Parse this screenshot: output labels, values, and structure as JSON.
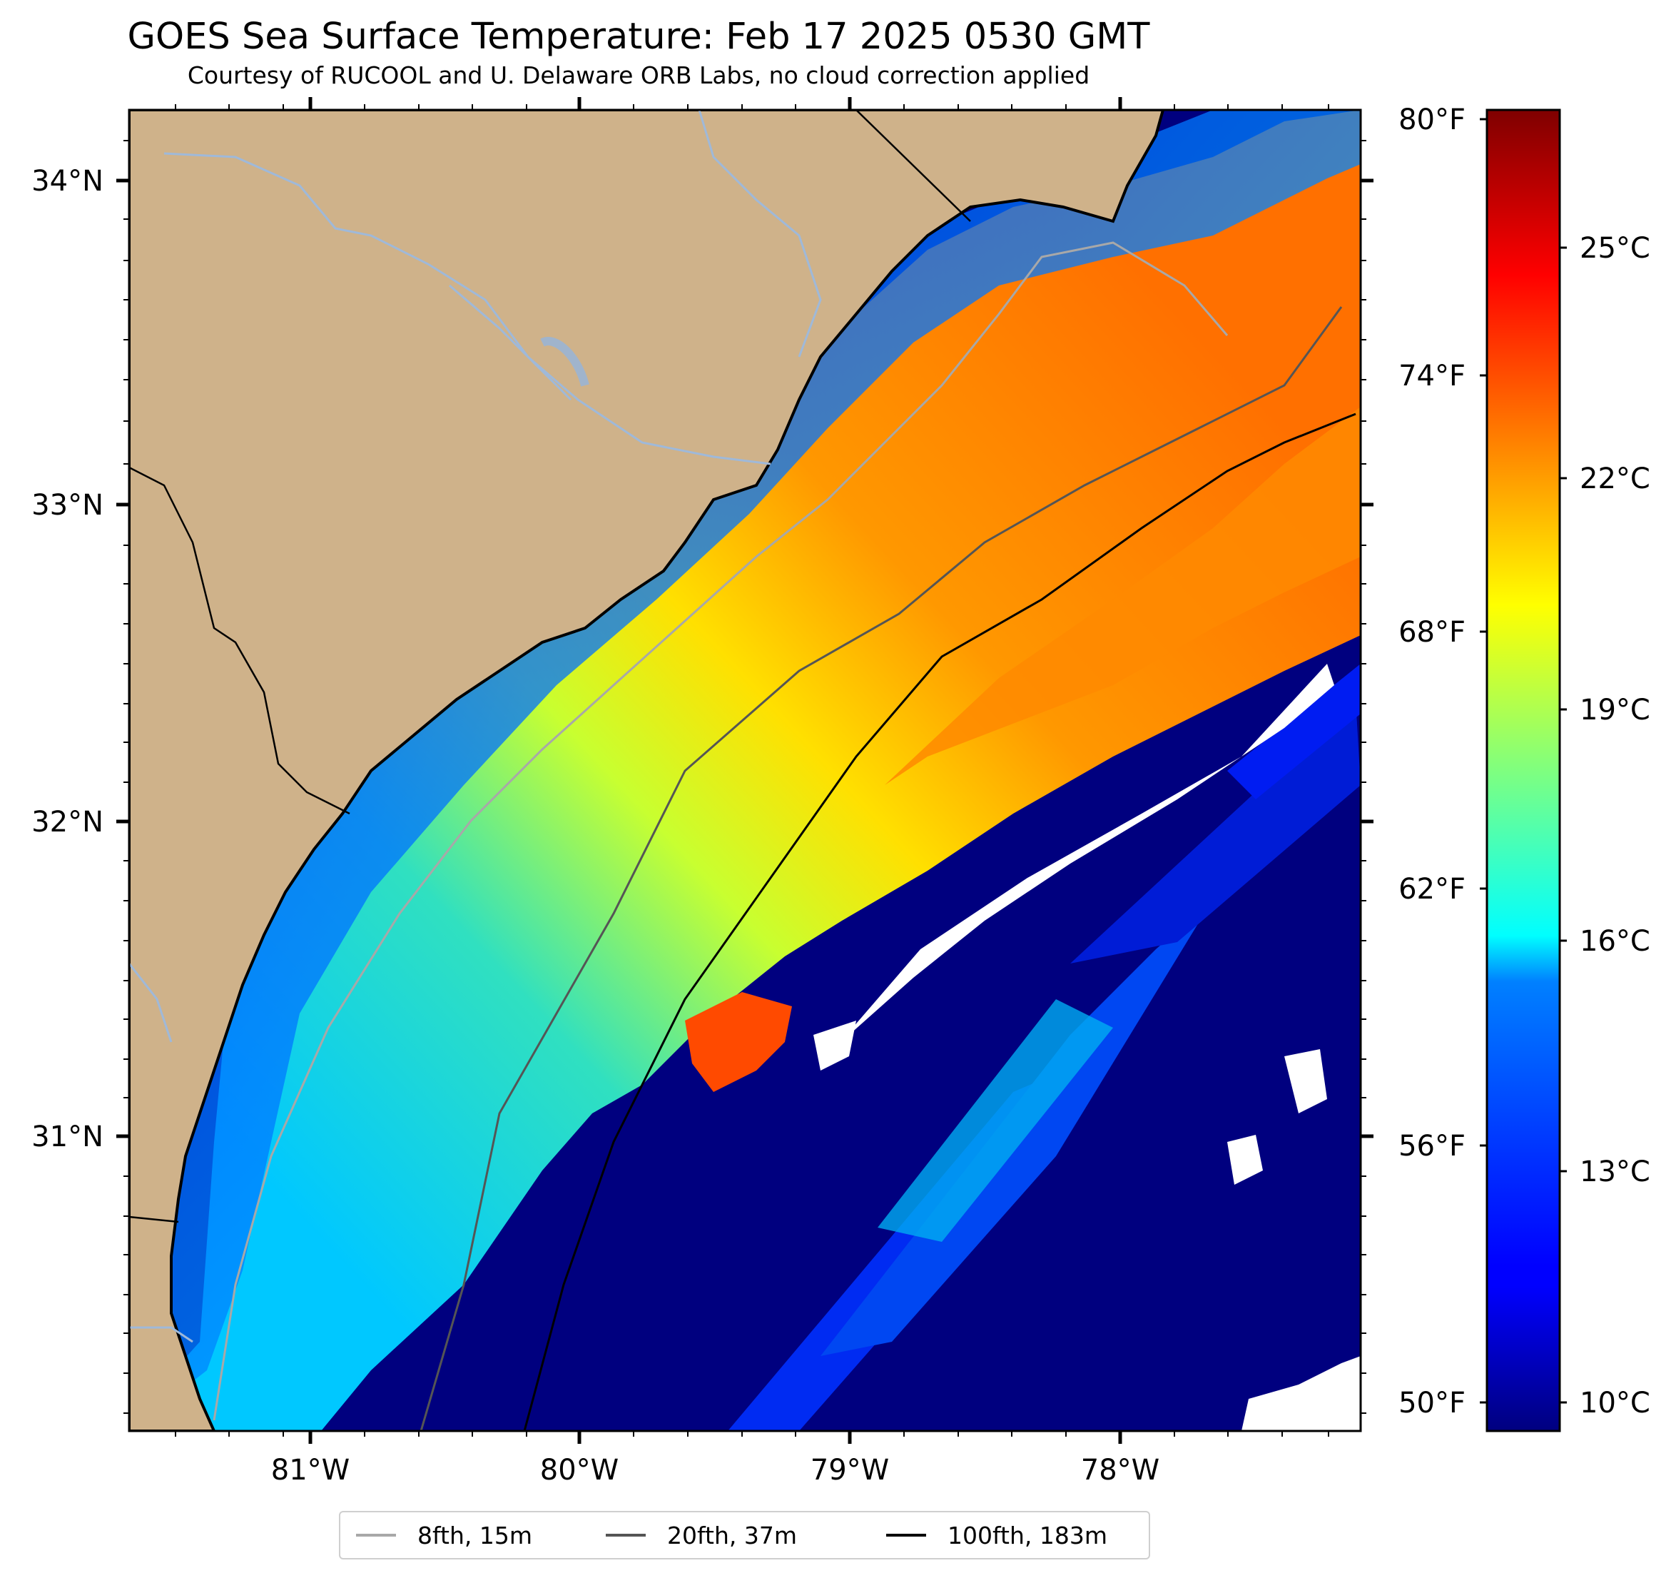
{
  "title": "GOES Sea Surface Temperature: Feb 17 2025 0530 GMT",
  "subtitle": "Courtesy of RUCOOL and U. Delaware ORB Labs, no cloud correction applied",
  "map": {
    "land_color": "#cfb28a",
    "coast_color": "#000000",
    "river_color": "#9fb9d9",
    "lat_labels": [
      "34°N",
      "33°N",
      "32°N",
      "31°N"
    ],
    "lon_labels": [
      "81°W",
      "80°W",
      "79°W",
      "78°W"
    ],
    "colormap": "jet"
  },
  "colorbar": {
    "fahrenheit_labels": [
      "80°F",
      "74°F",
      "68°F",
      "62°F",
      "56°F",
      "50°F"
    ],
    "celsius_labels": [
      "25°C",
      "22°C",
      "19°C",
      "16°C",
      "13°C",
      "10°C"
    ]
  },
  "legend": {
    "items": [
      {
        "label": "8fth, 15m",
        "color": "#a8a8a8"
      },
      {
        "label": "20fth, 37m",
        "color": "#555555"
      },
      {
        "label": "100fth, 183m",
        "color": "#000000"
      }
    ]
  }
}
